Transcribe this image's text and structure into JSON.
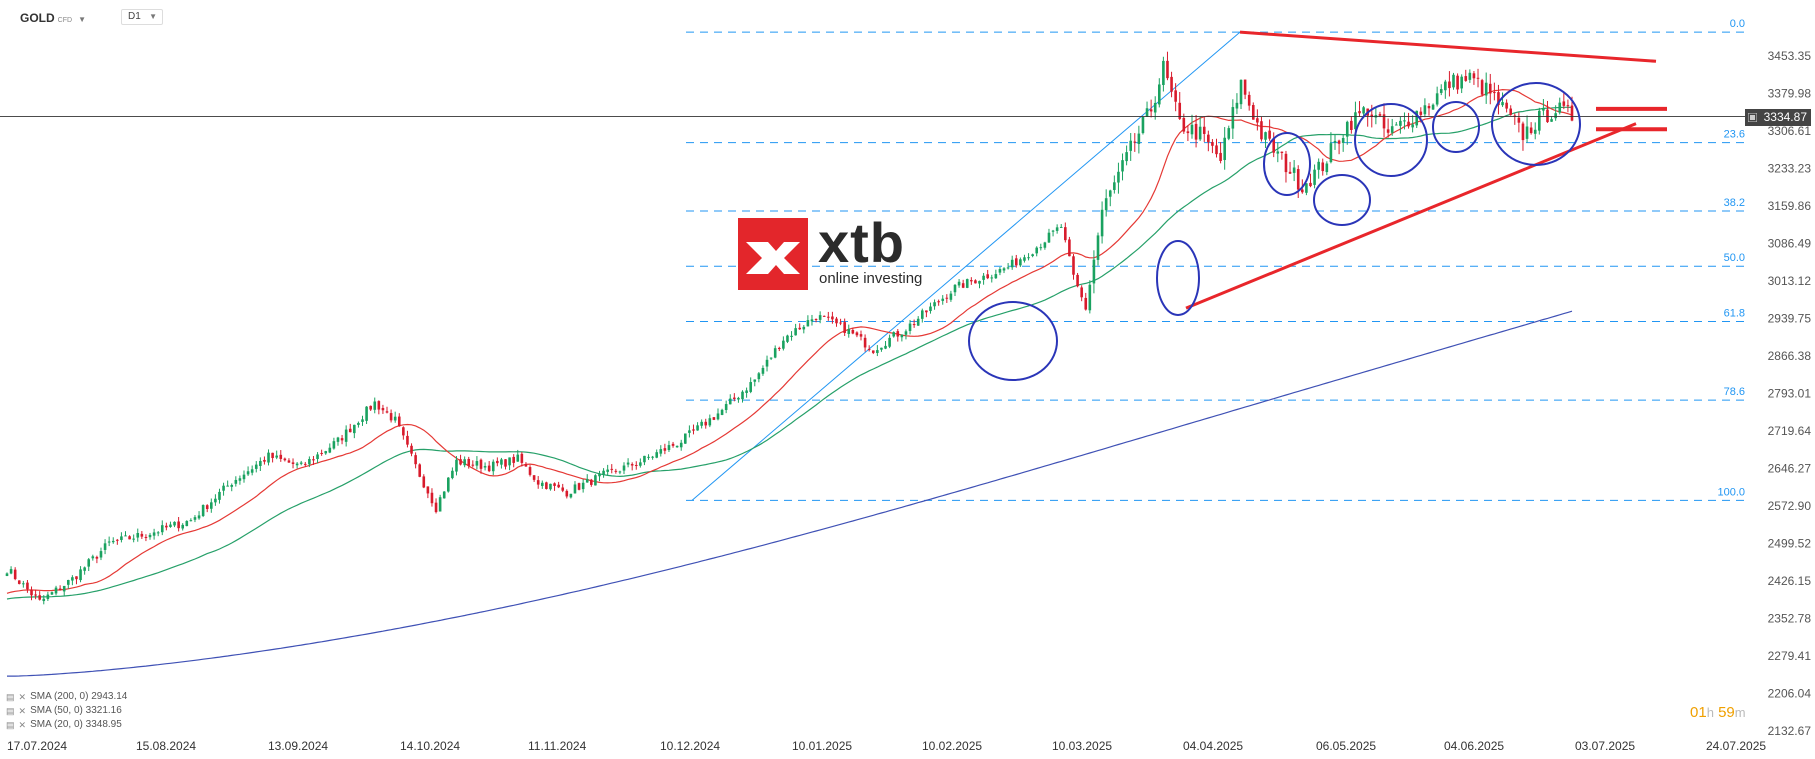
{
  "header": {
    "symbol": "GOLD",
    "symbol_sub": "CFD",
    "timeframe": "D1"
  },
  "logo": {
    "word": "xtb",
    "tagline": "online investing"
  },
  "current_price": "3334.87",
  "countdown": {
    "hours": "01",
    "h_unit": "h",
    "minutes": "59",
    "m_unit": "m"
  },
  "legend": [
    {
      "label": "SMA (200, 0) 2943.14"
    },
    {
      "label": "SMA (50, 0) 3321.16"
    },
    {
      "label": "SMA (20, 0) 3348.95"
    }
  ],
  "colors": {
    "bull": "#1aa260",
    "bear": "#d81b2c",
    "sma20": "#e53935",
    "sma50": "#26a069",
    "sma200": "#3f51b5",
    "fib": "#2196f3",
    "trend": "#e8262b",
    "circle": "#2a35b8"
  },
  "chart_data": {
    "type": "candlestick",
    "y_ticks": [
      "3453.35",
      "3379.98",
      "3306.61",
      "3233.23",
      "3159.86",
      "3086.49",
      "3013.12",
      "2939.75",
      "2866.38",
      "2793.01",
      "2719.64",
      "2646.27",
      "2572.90",
      "2499.52",
      "2426.15",
      "2352.78",
      "2279.41",
      "2206.04",
      "2132.67"
    ],
    "x_ticks": [
      "17.07.2024",
      "15.08.2024",
      "13.09.2024",
      "14.10.2024",
      "11.11.2024",
      "10.12.2024",
      "10.01.2025",
      "10.02.2025",
      "10.03.2025",
      "04.04.2025",
      "06.05.2025",
      "04.06.2025",
      "03.07.2025",
      "24.07.2025"
    ],
    "ylim": [
      2132.67,
      3489.0
    ],
    "fibonacci": {
      "high": 3500.0,
      "low": 2584.0,
      "levels": [
        "0.0",
        "23.6",
        "38.2",
        "50.0",
        "61.8",
        "78.6",
        "100.0"
      ]
    },
    "sma200_last": 2943.14,
    "sma50_last": 3321.16,
    "sma20_last": 3348.95,
    "anchors": [
      [
        0,
        2450
      ],
      [
        8,
        2385
      ],
      [
        16,
        2430
      ],
      [
        25,
        2500
      ],
      [
        35,
        2520
      ],
      [
        45,
        2545
      ],
      [
        55,
        2620
      ],
      [
        64,
        2670
      ],
      [
        72,
        2650
      ],
      [
        81,
        2700
      ],
      [
        90,
        2775
      ],
      [
        95,
        2740
      ],
      [
        100,
        2650
      ],
      [
        105,
        2570
      ],
      [
        110,
        2660
      ],
      [
        118,
        2650
      ],
      [
        125,
        2665
      ],
      [
        130,
        2620
      ],
      [
        137,
        2600
      ],
      [
        145,
        2630
      ],
      [
        155,
        2660
      ],
      [
        165,
        2700
      ],
      [
        175,
        2760
      ],
      [
        183,
        2820
      ],
      [
        190,
        2900
      ],
      [
        198,
        2945
      ],
      [
        205,
        2920
      ],
      [
        212,
        2880
      ],
      [
        220,
        2920
      ],
      [
        232,
        3000
      ],
      [
        245,
        3040
      ],
      [
        252,
        3080
      ],
      [
        258,
        3120
      ],
      [
        261,
        3020
      ],
      [
        264,
        2960
      ],
      [
        268,
        3150
      ],
      [
        275,
        3270
      ],
      [
        280,
        3350
      ],
      [
        283,
        3430
      ],
      [
        287,
        3320
      ],
      [
        292,
        3300
      ],
      [
        297,
        3250
      ],
      [
        302,
        3400
      ],
      [
        307,
        3300
      ],
      [
        312,
        3250
      ],
      [
        317,
        3200
      ],
      [
        322,
        3240
      ],
      [
        328,
        3320
      ],
      [
        333,
        3350
      ],
      [
        338,
        3300
      ],
      [
        343,
        3330
      ],
      [
        348,
        3360
      ],
      [
        353,
        3400
      ],
      [
        358,
        3410
      ],
      [
        363,
        3380
      ],
      [
        368,
        3330
      ],
      [
        371,
        3300
      ],
      [
        375,
        3330
      ],
      [
        379,
        3350
      ],
      [
        383,
        3335
      ]
    ]
  }
}
